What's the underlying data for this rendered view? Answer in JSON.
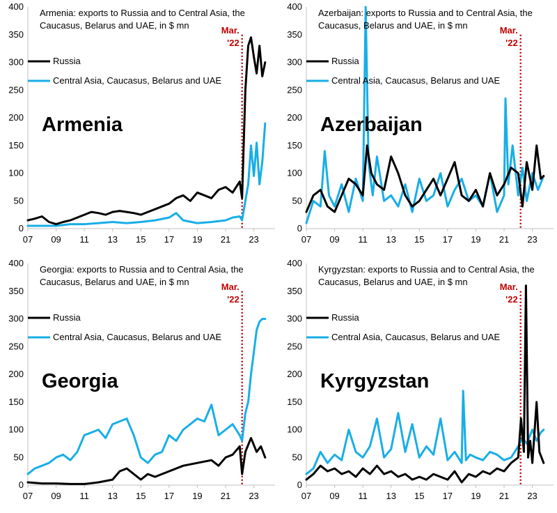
{
  "colors": {
    "russia": "#000000",
    "ca": "#18aee6",
    "marker": "#c00000"
  },
  "chart_data": [
    {
      "type": "line",
      "title_lines": [
        "Armenia: exports to Russia and to Central Asia, the",
        "Caucasus, Belarus and UAE, in $ mn"
      ],
      "country": "Armenia",
      "ylim": [
        0,
        400
      ],
      "yticks": [
        "0",
        "50",
        "100",
        "150",
        "200",
        "250",
        "300",
        "350",
        "400"
      ],
      "xlim": [
        2007,
        2024.5
      ],
      "xticks": [
        "07",
        "09",
        "11",
        "13",
        "15",
        "17",
        "19",
        "21",
        "23"
      ],
      "marker": {
        "label_1": "Mar.",
        "label_2": "'22",
        "x": 2022.17
      },
      "legend": [
        "Russia",
        "Central Asia, Caucasus, Belarus and UAE"
      ],
      "series": [
        {
          "name": "Russia",
          "color_key": "russia",
          "x": [
            2007.0,
            2007.5,
            2008.0,
            2008.5,
            2009.0,
            2009.5,
            2010.0,
            2010.5,
            2011.0,
            2011.5,
            2012.0,
            2012.5,
            2013.0,
            2013.5,
            2014.0,
            2014.5,
            2015.0,
            2015.5,
            2016.0,
            2016.5,
            2017.0,
            2017.5,
            2018.0,
            2018.5,
            2019.0,
            2019.5,
            2020.0,
            2020.5,
            2021.0,
            2021.5,
            2022.0,
            2022.17,
            2022.4,
            2022.6,
            2022.8,
            2023.0,
            2023.2,
            2023.4,
            2023.6,
            2023.8
          ],
          "y": [
            15,
            18,
            22,
            12,
            8,
            12,
            15,
            20,
            25,
            30,
            28,
            25,
            30,
            32,
            30,
            28,
            25,
            30,
            35,
            40,
            45,
            55,
            60,
            50,
            65,
            60,
            55,
            70,
            75,
            65,
            85,
            55,
            250,
            330,
            345,
            310,
            280,
            330,
            275,
            300
          ]
        },
        {
          "name": "Central Asia, Caucasus, Belarus and UAE",
          "color_key": "ca",
          "x": [
            2007.0,
            2008.0,
            2009.0,
            2010.0,
            2011.0,
            2012.0,
            2013.0,
            2014.0,
            2015.0,
            2016.0,
            2017.0,
            2017.5,
            2018.0,
            2019.0,
            2020.0,
            2021.0,
            2021.5,
            2022.0,
            2022.17,
            2022.4,
            2022.6,
            2022.8,
            2023.0,
            2023.2,
            2023.4,
            2023.6,
            2023.8
          ],
          "y": [
            5,
            5,
            5,
            8,
            8,
            10,
            12,
            10,
            12,
            15,
            20,
            28,
            15,
            10,
            12,
            15,
            20,
            22,
            15,
            50,
            80,
            150,
            95,
            155,
            80,
            120,
            190
          ]
        }
      ]
    },
    {
      "type": "line",
      "title_lines": [
        "Azerbaijan: exports to Russia and to Central Asia, the",
        "Caucasus, Belarus and UAE, in $ mn"
      ],
      "country": "Azerbaijan",
      "ylim": [
        0,
        400
      ],
      "yticks": [
        "0",
        "50",
        "100",
        "150",
        "200",
        "250",
        "300",
        "350",
        "400"
      ],
      "xlim": [
        2007,
        2024.5
      ],
      "xticks": [
        "07",
        "09",
        "11",
        "13",
        "15",
        "17",
        "19",
        "21",
        "23"
      ],
      "marker": {
        "label_1": "Mar.",
        "label_2": "'22",
        "x": 2022.17
      },
      "legend": [
        "Russia",
        "Central Asia, Caucasus, Belarus and UAE"
      ],
      "series": [
        {
          "name": "Russia",
          "color_key": "russia",
          "x": [
            2007.0,
            2007.5,
            2008.0,
            2008.5,
            2009.0,
            2009.5,
            2010.0,
            2010.5,
            2011.0,
            2011.3,
            2011.6,
            2012.0,
            2012.5,
            2013.0,
            2013.5,
            2014.0,
            2014.5,
            2015.0,
            2015.5,
            2016.0,
            2016.5,
            2017.0,
            2017.5,
            2018.0,
            2018.5,
            2019.0,
            2019.5,
            2020.0,
            2020.5,
            2021.0,
            2021.5,
            2022.0,
            2022.3,
            2022.6,
            2023.0,
            2023.3,
            2023.6,
            2023.8
          ],
          "y": [
            30,
            60,
            70,
            40,
            30,
            60,
            90,
            80,
            60,
            150,
            100,
            80,
            70,
            130,
            100,
            60,
            40,
            50,
            70,
            90,
            60,
            90,
            120,
            60,
            50,
            70,
            40,
            100,
            60,
            80,
            110,
            100,
            40,
            120,
            70,
            150,
            90,
            95
          ]
        },
        {
          "name": "Central Asia, Caucasus, Belarus and UAE",
          "color_key": "ca",
          "x": [
            2007.0,
            2007.5,
            2008.0,
            2008.3,
            2008.6,
            2009.0,
            2009.5,
            2010.0,
            2010.5,
            2011.0,
            2011.2,
            2011.4,
            2011.7,
            2012.0,
            2012.5,
            2013.0,
            2013.5,
            2014.0,
            2014.5,
            2015.0,
            2015.5,
            2016.0,
            2016.5,
            2017.0,
            2017.5,
            2018.0,
            2018.5,
            2019.0,
            2019.5,
            2020.0,
            2020.5,
            2021.0,
            2021.1,
            2021.3,
            2021.6,
            2022.0,
            2022.3,
            2022.6,
            2023.0,
            2023.4,
            2023.8
          ],
          "y": [
            10,
            50,
            40,
            140,
            60,
            40,
            80,
            30,
            90,
            50,
            400,
            120,
            60,
            130,
            50,
            60,
            40,
            80,
            30,
            90,
            50,
            60,
            100,
            40,
            70,
            90,
            50,
            60,
            40,
            100,
            30,
            60,
            235,
            80,
            150,
            60,
            110,
            50,
            100,
            70,
            95
          ]
        }
      ]
    },
    {
      "type": "line",
      "title_lines": [
        "Georgia: exports to Russia and to Central Asia, the",
        "Caucasus, Belarus and UAE, in $ mn"
      ],
      "country": "Georgia",
      "ylim": [
        0,
        400
      ],
      "yticks": [
        "0",
        "50",
        "100",
        "150",
        "200",
        "250",
        "300",
        "350",
        "400"
      ],
      "xlim": [
        2007,
        2024.5
      ],
      "xticks": [
        "07",
        "09",
        "11",
        "13",
        "15",
        "17",
        "19",
        "21",
        "23"
      ],
      "marker": {
        "label_1": "Mar.",
        "label_2": "'22",
        "x": 2022.17
      },
      "legend": [
        "Russia",
        "Central Asia, Caucasus, Belarus and UAE"
      ],
      "series": [
        {
          "name": "Russia",
          "color_key": "russia",
          "x": [
            2007.0,
            2008.0,
            2009.0,
            2010.0,
            2011.0,
            2012.0,
            2013.0,
            2013.5,
            2014.0,
            2014.5,
            2015.0,
            2015.5,
            2016.0,
            2017.0,
            2018.0,
            2019.0,
            2020.0,
            2020.5,
            2021.0,
            2021.5,
            2022.0,
            2022.17,
            2022.4,
            2022.8,
            2023.2,
            2023.5,
            2023.8
          ],
          "y": [
            5,
            3,
            3,
            2,
            2,
            5,
            10,
            25,
            30,
            20,
            10,
            20,
            15,
            25,
            35,
            40,
            45,
            35,
            50,
            55,
            70,
            20,
            60,
            85,
            60,
            70,
            50
          ]
        },
        {
          "name": "Central Asia, Caucasus, Belarus and UAE",
          "color_key": "ca",
          "x": [
            2007.0,
            2007.5,
            2008.0,
            2008.5,
            2009.0,
            2009.5,
            2010.0,
            2010.5,
            2011.0,
            2011.5,
            2012.0,
            2012.5,
            2013.0,
            2013.5,
            2014.0,
            2014.5,
            2015.0,
            2015.5,
            2016.0,
            2016.5,
            2017.0,
            2017.5,
            2018.0,
            2018.5,
            2019.0,
            2019.5,
            2020.0,
            2020.5,
            2021.0,
            2021.5,
            2022.0,
            2022.17,
            2022.4,
            2022.6,
            2022.8,
            2023.0,
            2023.2,
            2023.4,
            2023.6,
            2023.8
          ],
          "y": [
            20,
            30,
            35,
            40,
            50,
            55,
            45,
            60,
            90,
            95,
            100,
            85,
            110,
            115,
            120,
            90,
            50,
            40,
            55,
            60,
            90,
            80,
            100,
            110,
            120,
            115,
            145,
            90,
            100,
            110,
            90,
            80,
            130,
            150,
            200,
            240,
            280,
            295,
            300,
            300
          ]
        }
      ]
    },
    {
      "type": "line",
      "title_lines": [
        "Kyrgyzstan: exports to Russia and to Central Asia, the",
        "Caucasus, Belarus and UAE, in $ mn"
      ],
      "country": "Kyrgyzstan",
      "ylim": [
        0,
        400
      ],
      "yticks": [
        "0",
        "50",
        "100",
        "150",
        "200",
        "250",
        "300",
        "350",
        "400"
      ],
      "xlim": [
        2007,
        2024.5
      ],
      "xticks": [
        "07",
        "09",
        "11",
        "13",
        "15",
        "17",
        "19",
        "21",
        "23"
      ],
      "marker": {
        "label_1": "Mar.",
        "label_2": "'22",
        "x": 2022.17
      },
      "legend": [
        "Russia",
        "Central Asia, Caucasus, Belarus and UAE"
      ],
      "series": [
        {
          "name": "Russia",
          "color_key": "russia",
          "x": [
            2007.0,
            2007.5,
            2008.0,
            2008.5,
            2009.0,
            2009.5,
            2010.0,
            2010.5,
            2011.0,
            2011.5,
            2012.0,
            2012.5,
            2013.0,
            2013.5,
            2014.0,
            2014.5,
            2015.0,
            2015.5,
            2016.0,
            2016.5,
            2017.0,
            2017.5,
            2018.0,
            2018.5,
            2019.0,
            2019.5,
            2020.0,
            2020.5,
            2021.0,
            2021.5,
            2022.0,
            2022.2,
            2022.4,
            2022.55,
            2022.7,
            2022.85,
            2023.0,
            2023.3,
            2023.5,
            2023.8
          ],
          "y": [
            10,
            20,
            35,
            25,
            30,
            20,
            25,
            15,
            30,
            20,
            35,
            20,
            25,
            15,
            20,
            10,
            15,
            10,
            20,
            15,
            10,
            25,
            5,
            20,
            15,
            25,
            20,
            30,
            25,
            40,
            50,
            120,
            60,
            360,
            50,
            80,
            40,
            150,
            60,
            40
          ]
        },
        {
          "name": "Central Asia, Caucasus, Belarus and UAE",
          "color_key": "ca",
          "x": [
            2007.0,
            2007.5,
            2008.0,
            2008.5,
            2009.0,
            2009.5,
            2010.0,
            2010.5,
            2011.0,
            2011.5,
            2012.0,
            2012.5,
            2013.0,
            2013.5,
            2014.0,
            2014.5,
            2015.0,
            2015.5,
            2016.0,
            2016.5,
            2017.0,
            2017.5,
            2018.0,
            2018.1,
            2018.3,
            2018.6,
            2019.0,
            2019.5,
            2020.0,
            2020.5,
            2021.0,
            2021.5,
            2022.0,
            2022.3,
            2022.6,
            2023.0,
            2023.3,
            2023.6,
            2023.8
          ],
          "y": [
            20,
            30,
            60,
            40,
            55,
            45,
            100,
            60,
            50,
            70,
            120,
            50,
            65,
            130,
            60,
            110,
            50,
            70,
            55,
            120,
            45,
            60,
            40,
            170,
            45,
            55,
            50,
            45,
            60,
            55,
            45,
            50,
            70,
            85,
            75,
            100,
            80,
            95,
            100
          ]
        }
      ]
    }
  ]
}
